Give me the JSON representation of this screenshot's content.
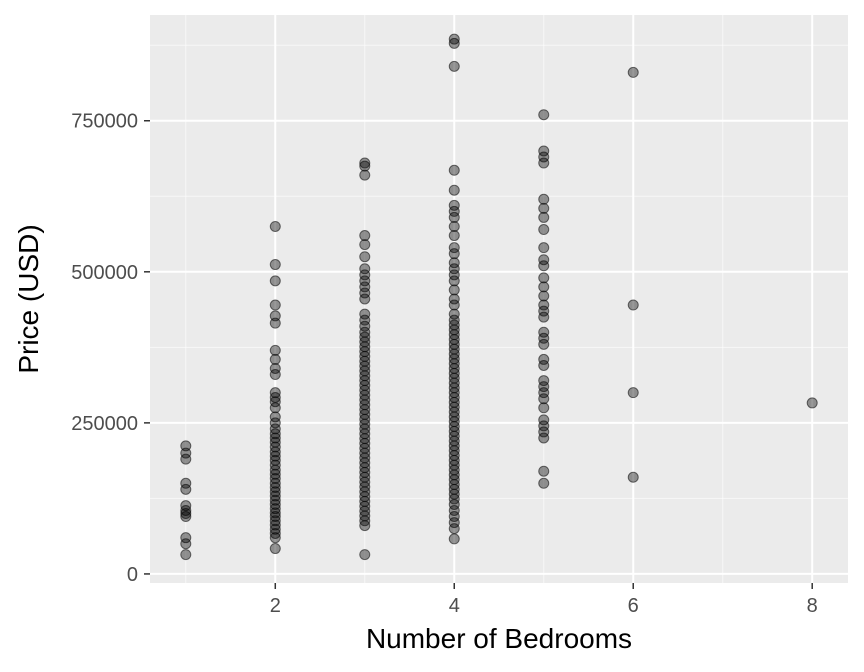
{
  "chart_data": {
    "type": "scatter",
    "title": "",
    "xlabel": "Number of Bedrooms",
    "ylabel": "Price (USD)",
    "xlim": [
      0.6,
      8.4
    ],
    "ylim": [
      -15000,
      925000
    ],
    "x_ticks": [
      2,
      4,
      6,
      8
    ],
    "y_ticks": [
      0,
      250000,
      500000,
      750000
    ],
    "x_tick_labels": [
      "2",
      "4",
      "6",
      "8"
    ],
    "y_tick_labels": [
      "0",
      "250000",
      "500000",
      "750000"
    ],
    "grid": true,
    "legend": "none",
    "colors": {
      "panel": "#ebebeb",
      "grid_major": "#ffffff",
      "point_fill": "#000000",
      "point_fill_opacity": 0.4
    },
    "series": [
      {
        "points": [
          {
            "bedrooms": 1,
            "prices": [
              212000,
              200000,
              190000,
              150000,
              140000,
              113000,
              105000,
              100000,
              95000,
              60000,
              50000,
              32000
            ]
          },
          {
            "bedrooms": 2,
            "prices": [
              575000,
              512000,
              485000,
              445000,
              427000,
              415000,
              370000,
              355000,
              340000,
              330000,
              300000,
              292000,
              285000,
              275000,
              260000,
              250000,
              240000,
              232000,
              225000,
              218000,
              210000,
              202000,
              195000,
              188000,
              180000,
              172000,
              165000,
              158000,
              150000,
              143000,
              136000,
              129000,
              122000,
              115000,
              108000,
              101000,
              95000,
              88000,
              81000,
              74000,
              67000,
              60000,
              42000
            ]
          },
          {
            "bedrooms": 3,
            "prices": [
              680000,
              675000,
              660000,
              560000,
              545000,
              525000,
              505000,
              495000,
              485000,
              475000,
              465000,
              455000,
              430000,
              420000,
              410000,
              400000,
              392000,
              384000,
              376000,
              368000,
              360000,
              352000,
              344000,
              336000,
              328000,
              320000,
              312000,
              304000,
              296000,
              288000,
              280000,
              272000,
              264000,
              256000,
              248000,
              240000,
              232000,
              224000,
              216000,
              208000,
              200000,
              192000,
              184000,
              176000,
              168000,
              160000,
              152000,
              144000,
              136000,
              128000,
              120000,
              112000,
              104000,
              96000,
              88000,
              80000,
              32000
            ]
          },
          {
            "bedrooms": 4,
            "prices": [
              885000,
              878000,
              840000,
              668000,
              635000,
              610000,
              600000,
              590000,
              575000,
              560000,
              540000,
              530000,
              515000,
              505000,
              495000,
              485000,
              470000,
              455000,
              445000,
              430000,
              420000,
              412000,
              404000,
              396000,
              388000,
              380000,
              372000,
              364000,
              356000,
              348000,
              340000,
              332000,
              324000,
              316000,
              308000,
              300000,
              292000,
              284000,
              276000,
              268000,
              260000,
              252000,
              244000,
              236000,
              228000,
              220000,
              212000,
              204000,
              196000,
              188000,
              180000,
              172000,
              164000,
              156000,
              148000,
              140000,
              132000,
              124000,
              115000,
              105000,
              95000,
              85000,
              75000,
              58000
            ]
          },
          {
            "bedrooms": 5,
            "prices": [
              760000,
              700000,
              690000,
              680000,
              620000,
              605000,
              590000,
              570000,
              540000,
              520000,
              510000,
              490000,
              475000,
              460000,
              445000,
              435000,
              425000,
              400000,
              390000,
              380000,
              355000,
              345000,
              320000,
              310000,
              300000,
              290000,
              275000,
              255000,
              245000,
              235000,
              225000,
              170000,
              150000
            ]
          },
          {
            "bedrooms": 6,
            "prices": [
              830000,
              445000,
              300000,
              160000
            ]
          },
          {
            "bedrooms": 8,
            "prices": [
              283000
            ]
          }
        ]
      }
    ]
  }
}
